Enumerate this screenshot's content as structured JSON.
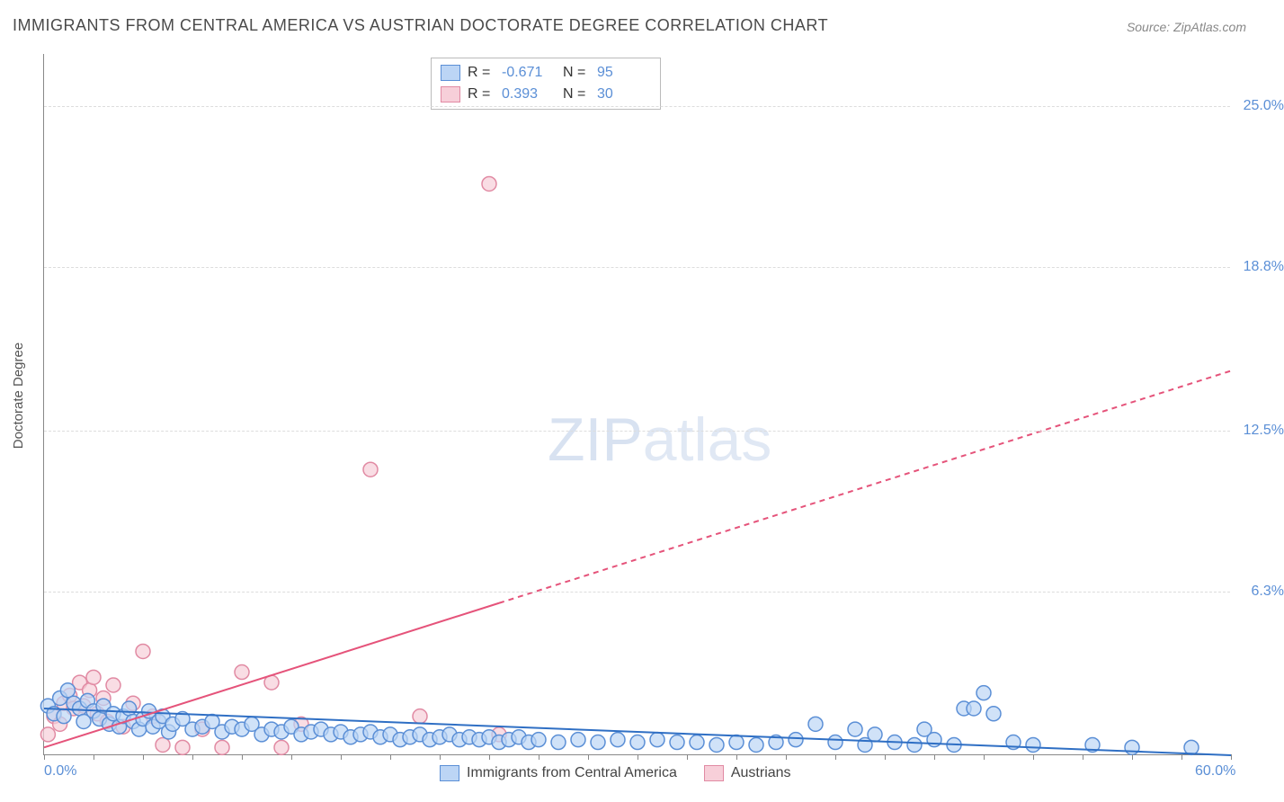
{
  "title": "IMMIGRANTS FROM CENTRAL AMERICA VS AUSTRIAN DOCTORATE DEGREE CORRELATION CHART",
  "source": "Source: ZipAtlas.com",
  "y_axis_label": "Doctorate Degree",
  "watermark_a": "ZIP",
  "watermark_b": "atlas",
  "chart": {
    "type": "scatter",
    "xlim": [
      0,
      60
    ],
    "ylim": [
      0,
      27
    ],
    "x_ticks_minor_step": 2.5,
    "x_tick_labels": [
      {
        "x": 0,
        "label": "0.0%"
      },
      {
        "x": 60,
        "label": "60.0%"
      }
    ],
    "y_grid": [
      {
        "y": 6.3,
        "label": "6.3%"
      },
      {
        "y": 12.5,
        "label": "12.5%"
      },
      {
        "y": 18.8,
        "label": "18.8%"
      },
      {
        "y": 25.0,
        "label": "25.0%"
      }
    ],
    "background_color": "#ffffff",
    "grid_color": "#dddddd",
    "axis_color": "#888888",
    "tick_label_color": "#5b8fd6",
    "marker_radius": 8,
    "marker_stroke_width": 1.5,
    "line_width": 2
  },
  "series": [
    {
      "name": "Immigrants from Central America",
      "fill": "#bcd5f5",
      "stroke": "#5b8fd6",
      "line_color": "#2f6fc4",
      "R": "-0.671",
      "N": "95",
      "trend": {
        "x1": 0,
        "y1": 1.8,
        "x2": 60,
        "y2": 0.0,
        "data_xmax": 60
      },
      "points": [
        [
          0.2,
          1.9
        ],
        [
          0.5,
          1.6
        ],
        [
          0.8,
          2.2
        ],
        [
          1.0,
          1.5
        ],
        [
          1.2,
          2.5
        ],
        [
          1.5,
          2.0
        ],
        [
          1.8,
          1.8
        ],
        [
          2.0,
          1.3
        ],
        [
          2.2,
          2.1
        ],
        [
          2.5,
          1.7
        ],
        [
          2.8,
          1.4
        ],
        [
          3.0,
          1.9
        ],
        [
          3.3,
          1.2
        ],
        [
          3.5,
          1.6
        ],
        [
          3.8,
          1.1
        ],
        [
          4.0,
          1.5
        ],
        [
          4.3,
          1.8
        ],
        [
          4.5,
          1.3
        ],
        [
          4.8,
          1.0
        ],
        [
          5.0,
          1.4
        ],
        [
          5.3,
          1.7
        ],
        [
          5.5,
          1.1
        ],
        [
          5.8,
          1.3
        ],
        [
          6.0,
          1.5
        ],
        [
          6.3,
          0.9
        ],
        [
          6.5,
          1.2
        ],
        [
          7.0,
          1.4
        ],
        [
          7.5,
          1.0
        ],
        [
          8.0,
          1.1
        ],
        [
          8.5,
          1.3
        ],
        [
          9.0,
          0.9
        ],
        [
          9.5,
          1.1
        ],
        [
          10.0,
          1.0
        ],
        [
          10.5,
          1.2
        ],
        [
          11.0,
          0.8
        ],
        [
          11.5,
          1.0
        ],
        [
          12.0,
          0.9
        ],
        [
          12.5,
          1.1
        ],
        [
          13.0,
          0.8
        ],
        [
          13.5,
          0.9
        ],
        [
          14.0,
          1.0
        ],
        [
          14.5,
          0.8
        ],
        [
          15.0,
          0.9
        ],
        [
          15.5,
          0.7
        ],
        [
          16.0,
          0.8
        ],
        [
          16.5,
          0.9
        ],
        [
          17.0,
          0.7
        ],
        [
          17.5,
          0.8
        ],
        [
          18.0,
          0.6
        ],
        [
          18.5,
          0.7
        ],
        [
          19.0,
          0.8
        ],
        [
          19.5,
          0.6
        ],
        [
          20.0,
          0.7
        ],
        [
          20.5,
          0.8
        ],
        [
          21.0,
          0.6
        ],
        [
          21.5,
          0.7
        ],
        [
          22.0,
          0.6
        ],
        [
          22.5,
          0.7
        ],
        [
          23.0,
          0.5
        ],
        [
          23.5,
          0.6
        ],
        [
          24.0,
          0.7
        ],
        [
          24.5,
          0.5
        ],
        [
          25.0,
          0.6
        ],
        [
          26.0,
          0.5
        ],
        [
          27.0,
          0.6
        ],
        [
          28.0,
          0.5
        ],
        [
          29.0,
          0.6
        ],
        [
          30.0,
          0.5
        ],
        [
          31.0,
          0.6
        ],
        [
          32.0,
          0.5
        ],
        [
          33.0,
          0.5
        ],
        [
          34.0,
          0.4
        ],
        [
          35.0,
          0.5
        ],
        [
          36.0,
          0.4
        ],
        [
          37.0,
          0.5
        ],
        [
          38.0,
          0.6
        ],
        [
          39.0,
          1.2
        ],
        [
          40.0,
          0.5
        ],
        [
          41.0,
          1.0
        ],
        [
          41.5,
          0.4
        ],
        [
          42.0,
          0.8
        ],
        [
          43.0,
          0.5
        ],
        [
          44.0,
          0.4
        ],
        [
          44.5,
          1.0
        ],
        [
          45.0,
          0.6
        ],
        [
          46.0,
          0.4
        ],
        [
          46.5,
          1.8
        ],
        [
          47.0,
          1.8
        ],
        [
          47.5,
          2.4
        ],
        [
          48.0,
          1.6
        ],
        [
          49.0,
          0.5
        ],
        [
          50.0,
          0.4
        ],
        [
          53.0,
          0.4
        ],
        [
          55.0,
          0.3
        ],
        [
          58.0,
          0.3
        ]
      ]
    },
    {
      "name": "Austrians",
      "fill": "#f7cfd9",
      "stroke": "#e18aa3",
      "line_color": "#e5537a",
      "R": "0.393",
      "N": "30",
      "trend": {
        "x1": 0,
        "y1": 0.3,
        "x2": 60,
        "y2": 14.8,
        "data_xmax": 23
      },
      "points": [
        [
          0.2,
          0.8
        ],
        [
          0.5,
          1.5
        ],
        [
          0.8,
          1.2
        ],
        [
          1.0,
          2.0
        ],
        [
          1.3,
          2.3
        ],
        [
          1.5,
          1.8
        ],
        [
          1.8,
          2.8
        ],
        [
          2.0,
          1.9
        ],
        [
          2.3,
          2.5
        ],
        [
          2.5,
          3.0
        ],
        [
          2.7,
          1.6
        ],
        [
          3.0,
          2.2
        ],
        [
          3.2,
          1.3
        ],
        [
          3.5,
          2.7
        ],
        [
          4.0,
          1.1
        ],
        [
          4.5,
          2.0
        ],
        [
          5.0,
          4.0
        ],
        [
          5.5,
          1.5
        ],
        [
          6.0,
          0.4
        ],
        [
          7.0,
          0.3
        ],
        [
          8.0,
          1.0
        ],
        [
          9.0,
          0.3
        ],
        [
          10.0,
          3.2
        ],
        [
          11.5,
          2.8
        ],
        [
          12.0,
          0.3
        ],
        [
          13.0,
          1.2
        ],
        [
          16.5,
          11.0
        ],
        [
          19.0,
          1.5
        ],
        [
          22.5,
          22.0
        ],
        [
          23.0,
          0.8
        ]
      ]
    }
  ],
  "legend": {
    "r_label": "R =",
    "n_label": "N ="
  },
  "bottom_legend": {
    "series1": "Immigrants from Central America",
    "series2": "Austrians"
  }
}
